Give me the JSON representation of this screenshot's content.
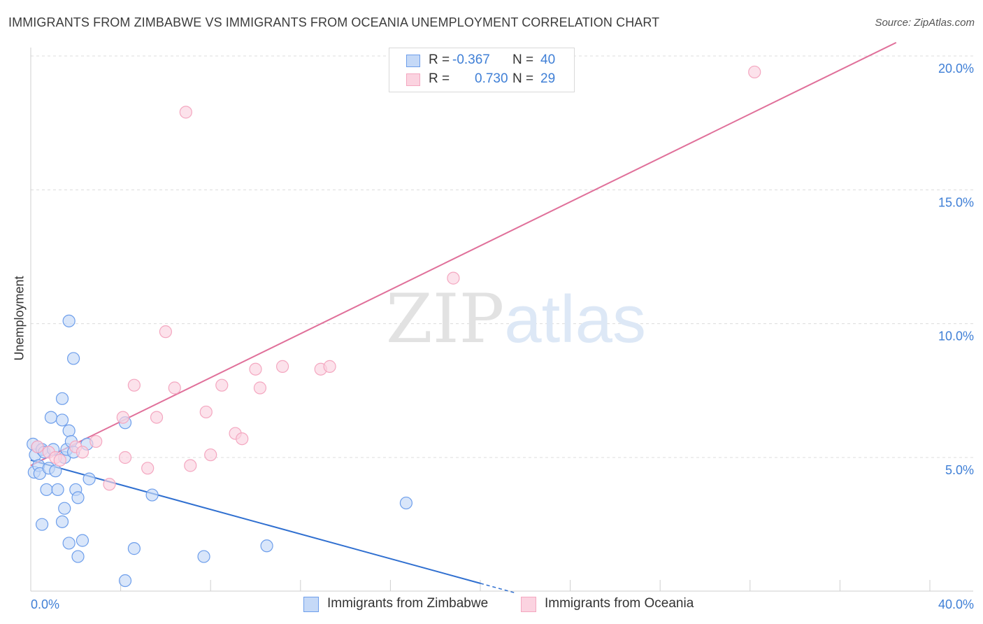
{
  "title": "IMMIGRANTS FROM ZIMBABWE VS IMMIGRANTS FROM OCEANIA UNEMPLOYMENT CORRELATION CHART",
  "source": "Source: ZipAtlas.com",
  "watermark": {
    "zip": "ZIP",
    "atlas": "atlas"
  },
  "legend": {
    "r_label": "R =",
    "n_label": "N =",
    "rows": [
      {
        "r": "-0.367",
        "n": "40"
      },
      {
        "r": "0.730",
        "n": "29"
      }
    ]
  },
  "chart_data": {
    "type": "scatter",
    "title": "IMMIGRANTS FROM ZIMBABWE VS IMMIGRANTS FROM OCEANIA UNEMPLOYMENT CORRELATION CHART",
    "xlabel": "",
    "ylabel": "Unemployment",
    "xlim": [
      0,
      40
    ],
    "ylim": [
      0,
      20.5
    ],
    "x_tick_labels": [
      "0.0%",
      "40.0%"
    ],
    "y_ticks": [
      5,
      10,
      15,
      20
    ],
    "y_tick_labels": [
      "5.0%",
      "10.0%",
      "15.0%",
      "20.0%"
    ],
    "grid": true,
    "legend_position": "bottom",
    "series": [
      {
        "name": "Immigrants from Zimbabwe",
        "color": "#6d9eeb",
        "line_color": "#2f6fd0",
        "fill": "#c5d9f7",
        "r": -0.367,
        "n": 40,
        "points": [
          [
            0.1,
            5.5
          ],
          [
            0.2,
            5.1
          ],
          [
            0.15,
            4.45
          ],
          [
            0.3,
            5.4
          ],
          [
            0.35,
            4.7
          ],
          [
            0.4,
            4.4
          ],
          [
            0.5,
            5.3
          ],
          [
            0.6,
            5.2
          ],
          [
            0.8,
            4.6
          ],
          [
            1.0,
            5.3
          ],
          [
            1.1,
            4.5
          ],
          [
            0.7,
            3.8
          ],
          [
            0.9,
            6.5
          ],
          [
            1.2,
            3.8
          ],
          [
            1.4,
            6.4
          ],
          [
            1.5,
            5.0
          ],
          [
            1.6,
            5.3
          ],
          [
            1.7,
            6.0
          ],
          [
            1.8,
            5.6
          ],
          [
            1.9,
            5.2
          ],
          [
            1.4,
            7.2
          ],
          [
            1.5,
            3.1
          ],
          [
            1.4,
            2.6
          ],
          [
            0.5,
            2.5
          ],
          [
            2.0,
            3.8
          ],
          [
            2.1,
            3.5
          ],
          [
            2.5,
            5.5
          ],
          [
            2.6,
            4.2
          ],
          [
            1.7,
            10.1
          ],
          [
            1.9,
            8.7
          ],
          [
            1.7,
            1.8
          ],
          [
            2.1,
            1.3
          ],
          [
            2.3,
            1.9
          ],
          [
            4.2,
            0.4
          ],
          [
            4.6,
            1.6
          ],
          [
            5.4,
            3.6
          ],
          [
            4.2,
            6.3
          ],
          [
            7.7,
            1.3
          ],
          [
            10.5,
            1.7
          ],
          [
            16.7,
            3.3
          ]
        ],
        "trend": {
          "x0": 0,
          "y0": 4.9,
          "x1": 20,
          "y1": 0.3,
          "dash_to_x": 21.5
        }
      },
      {
        "name": "Immigrants from Oceania",
        "color": "#f4a7c0",
        "line_color": "#e0709a",
        "fill": "#fbd3e0",
        "r": 0.73,
        "n": 29,
        "points": [
          [
            0.3,
            5.4
          ],
          [
            0.8,
            5.2
          ],
          [
            1.1,
            5.0
          ],
          [
            1.3,
            4.9
          ],
          [
            2.0,
            5.4
          ],
          [
            2.3,
            5.2
          ],
          [
            2.9,
            5.6
          ],
          [
            3.5,
            4.0
          ],
          [
            4.1,
            6.5
          ],
          [
            4.2,
            5.0
          ],
          [
            4.6,
            7.7
          ],
          [
            5.2,
            4.6
          ],
          [
            5.6,
            6.5
          ],
          [
            6.0,
            9.7
          ],
          [
            6.4,
            7.6
          ],
          [
            7.1,
            4.7
          ],
          [
            7.8,
            6.7
          ],
          [
            8.0,
            5.1
          ],
          [
            8.5,
            7.7
          ],
          [
            9.1,
            5.9
          ],
          [
            9.4,
            5.7
          ],
          [
            10.0,
            8.3
          ],
          [
            10.2,
            7.6
          ],
          [
            11.2,
            8.4
          ],
          [
            12.9,
            8.3
          ],
          [
            13.3,
            8.4
          ],
          [
            18.8,
            11.7
          ],
          [
            6.9,
            17.9
          ],
          [
            32.2,
            19.4
          ]
        ],
        "trend": {
          "x0": 0,
          "y0": 4.7,
          "x1": 38.5,
          "y1": 20.5
        }
      }
    ]
  }
}
